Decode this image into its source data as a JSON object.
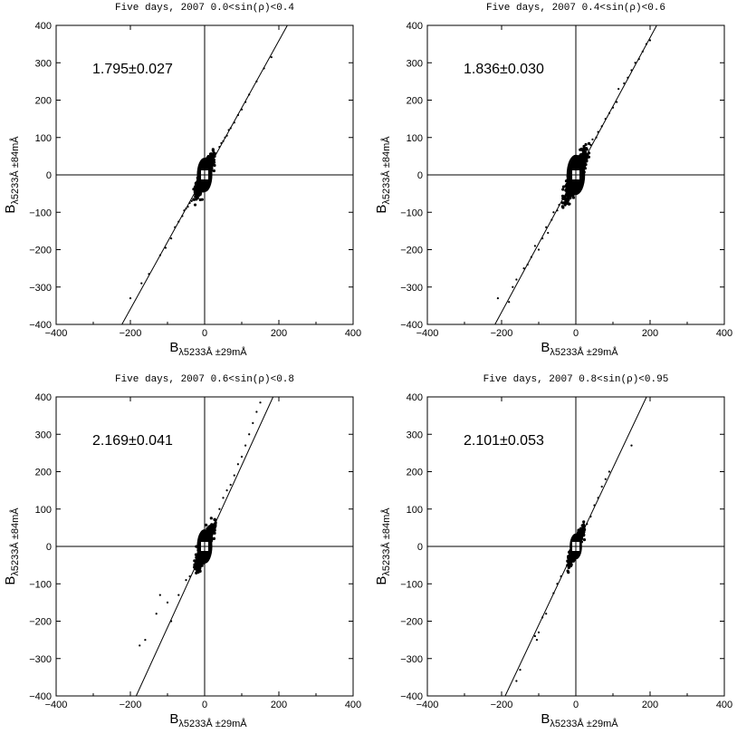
{
  "figure": {
    "panels": [
      {
        "title": "Five  days,  2007  0.0<sin(ρ)<0.4",
        "annotation": "1.795±0.027",
        "xlabel": "B",
        "xlabel_sub": "λ5233Å",
        "xlabel_rest": " ±29mÅ",
        "ylabel": "B",
        "ylabel_sub": "λ5233Å",
        "ylabel_rest": " ±84mÅ"
      },
      {
        "title": "Five  days,  2007  0.4<sin(ρ)<0.6",
        "annotation": "1.836±0.030",
        "xlabel": "B",
        "xlabel_sub": "λ5233Å",
        "xlabel_rest": " ±29mÅ",
        "ylabel": "B",
        "ylabel_sub": "λ5233Å",
        "ylabel_rest": " ±84mÅ"
      },
      {
        "title": "Five  days,  2007  0.6<sin(ρ)<0.8",
        "annotation": "2.169±0.041",
        "xlabel": "B",
        "xlabel_sub": "λ5233Å",
        "xlabel_rest": " ±29mÅ",
        "ylabel": "B",
        "ylabel_sub": "λ5233Å",
        "ylabel_rest": " ±84mÅ"
      },
      {
        "title": "Five  days,  2007  0.8<sin(ρ)<0.95",
        "annotation": "2.101±0.053",
        "xlabel": "B",
        "xlabel_sub": "λ5233Å",
        "xlabel_rest": " ±29mÅ",
        "ylabel": "B",
        "ylabel_sub": "λ5233Å",
        "ylabel_rest": " ±84mÅ"
      }
    ]
  },
  "chart_data": [
    {
      "type": "scatter",
      "title": "Five  days,  2007  0.0<sin(ρ)<0.4",
      "xlabel": "Bλ5233Å ±29mÅ",
      "ylabel": "Bλ5233Å ±84mÅ",
      "xlim": [
        -400,
        400
      ],
      "ylim": [
        -400,
        400
      ],
      "xticks": [
        -400,
        -200,
        0,
        200,
        400
      ],
      "yticks": [
        -400,
        -300,
        -200,
        -100,
        0,
        100,
        200,
        300,
        400
      ],
      "fit_slope": 1.795,
      "fit_slope_error": 0.027,
      "core_cluster": {
        "center": [
          0,
          0
        ],
        "x_range": [
          -25,
          25
        ],
        "y_range": [
          -60,
          60
        ]
      },
      "points": [
        [
          -200,
          -330
        ],
        [
          -170,
          -290
        ],
        [
          -150,
          -265
        ],
        [
          -120,
          -215
        ],
        [
          -105,
          -195
        ],
        [
          -90,
          -170
        ],
        [
          -80,
          -140
        ],
        [
          -70,
          -125
        ],
        [
          -60,
          -110
        ],
        [
          -55,
          -95
        ],
        [
          -50,
          -90
        ],
        [
          -45,
          -85
        ],
        [
          -40,
          -75
        ],
        [
          -35,
          -70
        ],
        [
          40,
          75
        ],
        [
          45,
          85
        ],
        [
          50,
          90
        ],
        [
          55,
          100
        ],
        [
          60,
          105
        ],
        [
          65,
          120
        ],
        [
          70,
          125
        ],
        [
          80,
          140
        ],
        [
          90,
          160
        ],
        [
          100,
          175
        ],
        [
          110,
          195
        ],
        [
          120,
          215
        ],
        [
          140,
          250
        ],
        [
          160,
          285
        ],
        [
          180,
          315
        ]
      ]
    },
    {
      "type": "scatter",
      "title": "Five  days,  2007  0.4<sin(ρ)<0.6",
      "xlabel": "Bλ5233Å ±29mÅ",
      "ylabel": "Bλ5233Å ±84mÅ",
      "xlim": [
        -400,
        400
      ],
      "ylim": [
        -400,
        400
      ],
      "xticks": [
        -400,
        -200,
        0,
        200,
        400
      ],
      "yticks": [
        -400,
        -300,
        -200,
        -100,
        0,
        100,
        200,
        300,
        400
      ],
      "fit_slope": 1.836,
      "fit_slope_error": 0.03,
      "core_cluster": {
        "center": [
          0,
          0
        ],
        "x_range": [
          -30,
          30
        ],
        "y_range": [
          -70,
          70
        ]
      },
      "points": [
        [
          -210,
          -330
        ],
        [
          -180,
          -340
        ],
        [
          -170,
          -300
        ],
        [
          -160,
          -280
        ],
        [
          -140,
          -250
        ],
        [
          -130,
          -240
        ],
        [
          -120,
          -220
        ],
        [
          -110,
          -190
        ],
        [
          -100,
          -200
        ],
        [
          -90,
          -170
        ],
        [
          -80,
          -140
        ],
        [
          -75,
          -155
        ],
        [
          -65,
          -120
        ],
        [
          -60,
          -100
        ],
        [
          -50,
          -95
        ],
        [
          -45,
          -80
        ],
        [
          40,
          80
        ],
        [
          45,
          95
        ],
        [
          55,
          100
        ],
        [
          60,
          115
        ],
        [
          70,
          130
        ],
        [
          80,
          150
        ],
        [
          90,
          165
        ],
        [
          100,
          180
        ],
        [
          110,
          195
        ],
        [
          115,
          230
        ],
        [
          130,
          245
        ],
        [
          140,
          260
        ],
        [
          150,
          280
        ],
        [
          160,
          300
        ],
        [
          170,
          310
        ],
        [
          180,
          330
        ],
        [
          190,
          350
        ],
        [
          200,
          360
        ]
      ]
    },
    {
      "type": "scatter",
      "title": "Five  days,  2007  0.6<sin(ρ)<0.8",
      "xlabel": "Bλ5233Å ±29mÅ",
      "ylabel": "Bλ5233Å ±84mÅ",
      "xlim": [
        -400,
        400
      ],
      "ylim": [
        -400,
        400
      ],
      "xticks": [
        -400,
        -200,
        0,
        200,
        400
      ],
      "yticks": [
        -400,
        -300,
        -200,
        -100,
        0,
        100,
        200,
        300,
        400
      ],
      "fit_slope": 2.169,
      "fit_slope_error": 0.041,
      "core_cluster": {
        "center": [
          0,
          0
        ],
        "x_range": [
          -25,
          25
        ],
        "y_range": [
          -60,
          60
        ]
      },
      "points": [
        [
          -175,
          -265
        ],
        [
          -160,
          -250
        ],
        [
          -130,
          -180
        ],
        [
          -120,
          -130
        ],
        [
          -100,
          -150
        ],
        [
          -90,
          -200
        ],
        [
          -70,
          -130
        ],
        [
          -50,
          -90
        ],
        [
          -40,
          -80
        ],
        [
          30,
          70
        ],
        [
          40,
          100
        ],
        [
          50,
          130
        ],
        [
          60,
          150
        ],
        [
          70,
          165
        ],
        [
          80,
          190
        ],
        [
          90,
          220
        ],
        [
          100,
          240
        ],
        [
          110,
          270
        ],
        [
          120,
          300
        ],
        [
          130,
          330
        ],
        [
          140,
          360
        ],
        [
          150,
          385
        ]
      ]
    },
    {
      "type": "scatter",
      "title": "Five  days,  2007  0.8<sin(ρ)<0.95",
      "xlabel": "Bλ5233Å ±29mÅ",
      "ylabel": "Bλ5233Å ±84mÅ",
      "xlim": [
        -400,
        400
      ],
      "ylim": [
        -400,
        400
      ],
      "xticks": [
        -400,
        -200,
        0,
        200,
        400
      ],
      "yticks": [
        -400,
        -300,
        -200,
        -100,
        0,
        100,
        200,
        300,
        400
      ],
      "fit_slope": 2.101,
      "fit_slope_error": 0.053,
      "core_cluster": {
        "center": [
          0,
          0
        ],
        "x_range": [
          -20,
          20
        ],
        "y_range": [
          -45,
          45
        ]
      },
      "points": [
        [
          -160,
          -360
        ],
        [
          -150,
          -330
        ],
        [
          -110,
          -240
        ],
        [
          -105,
          -250
        ],
        [
          -100,
          -230
        ],
        [
          -90,
          -190
        ],
        [
          -80,
          -180
        ],
        [
          -60,
          -125
        ],
        [
          -50,
          -100
        ],
        [
          -40,
          -80
        ],
        [
          30,
          60
        ],
        [
          40,
          80
        ],
        [
          50,
          110
        ],
        [
          60,
          130
        ],
        [
          70,
          160
        ],
        [
          80,
          180
        ],
        [
          90,
          200
        ],
        [
          150,
          270
        ]
      ]
    }
  ]
}
